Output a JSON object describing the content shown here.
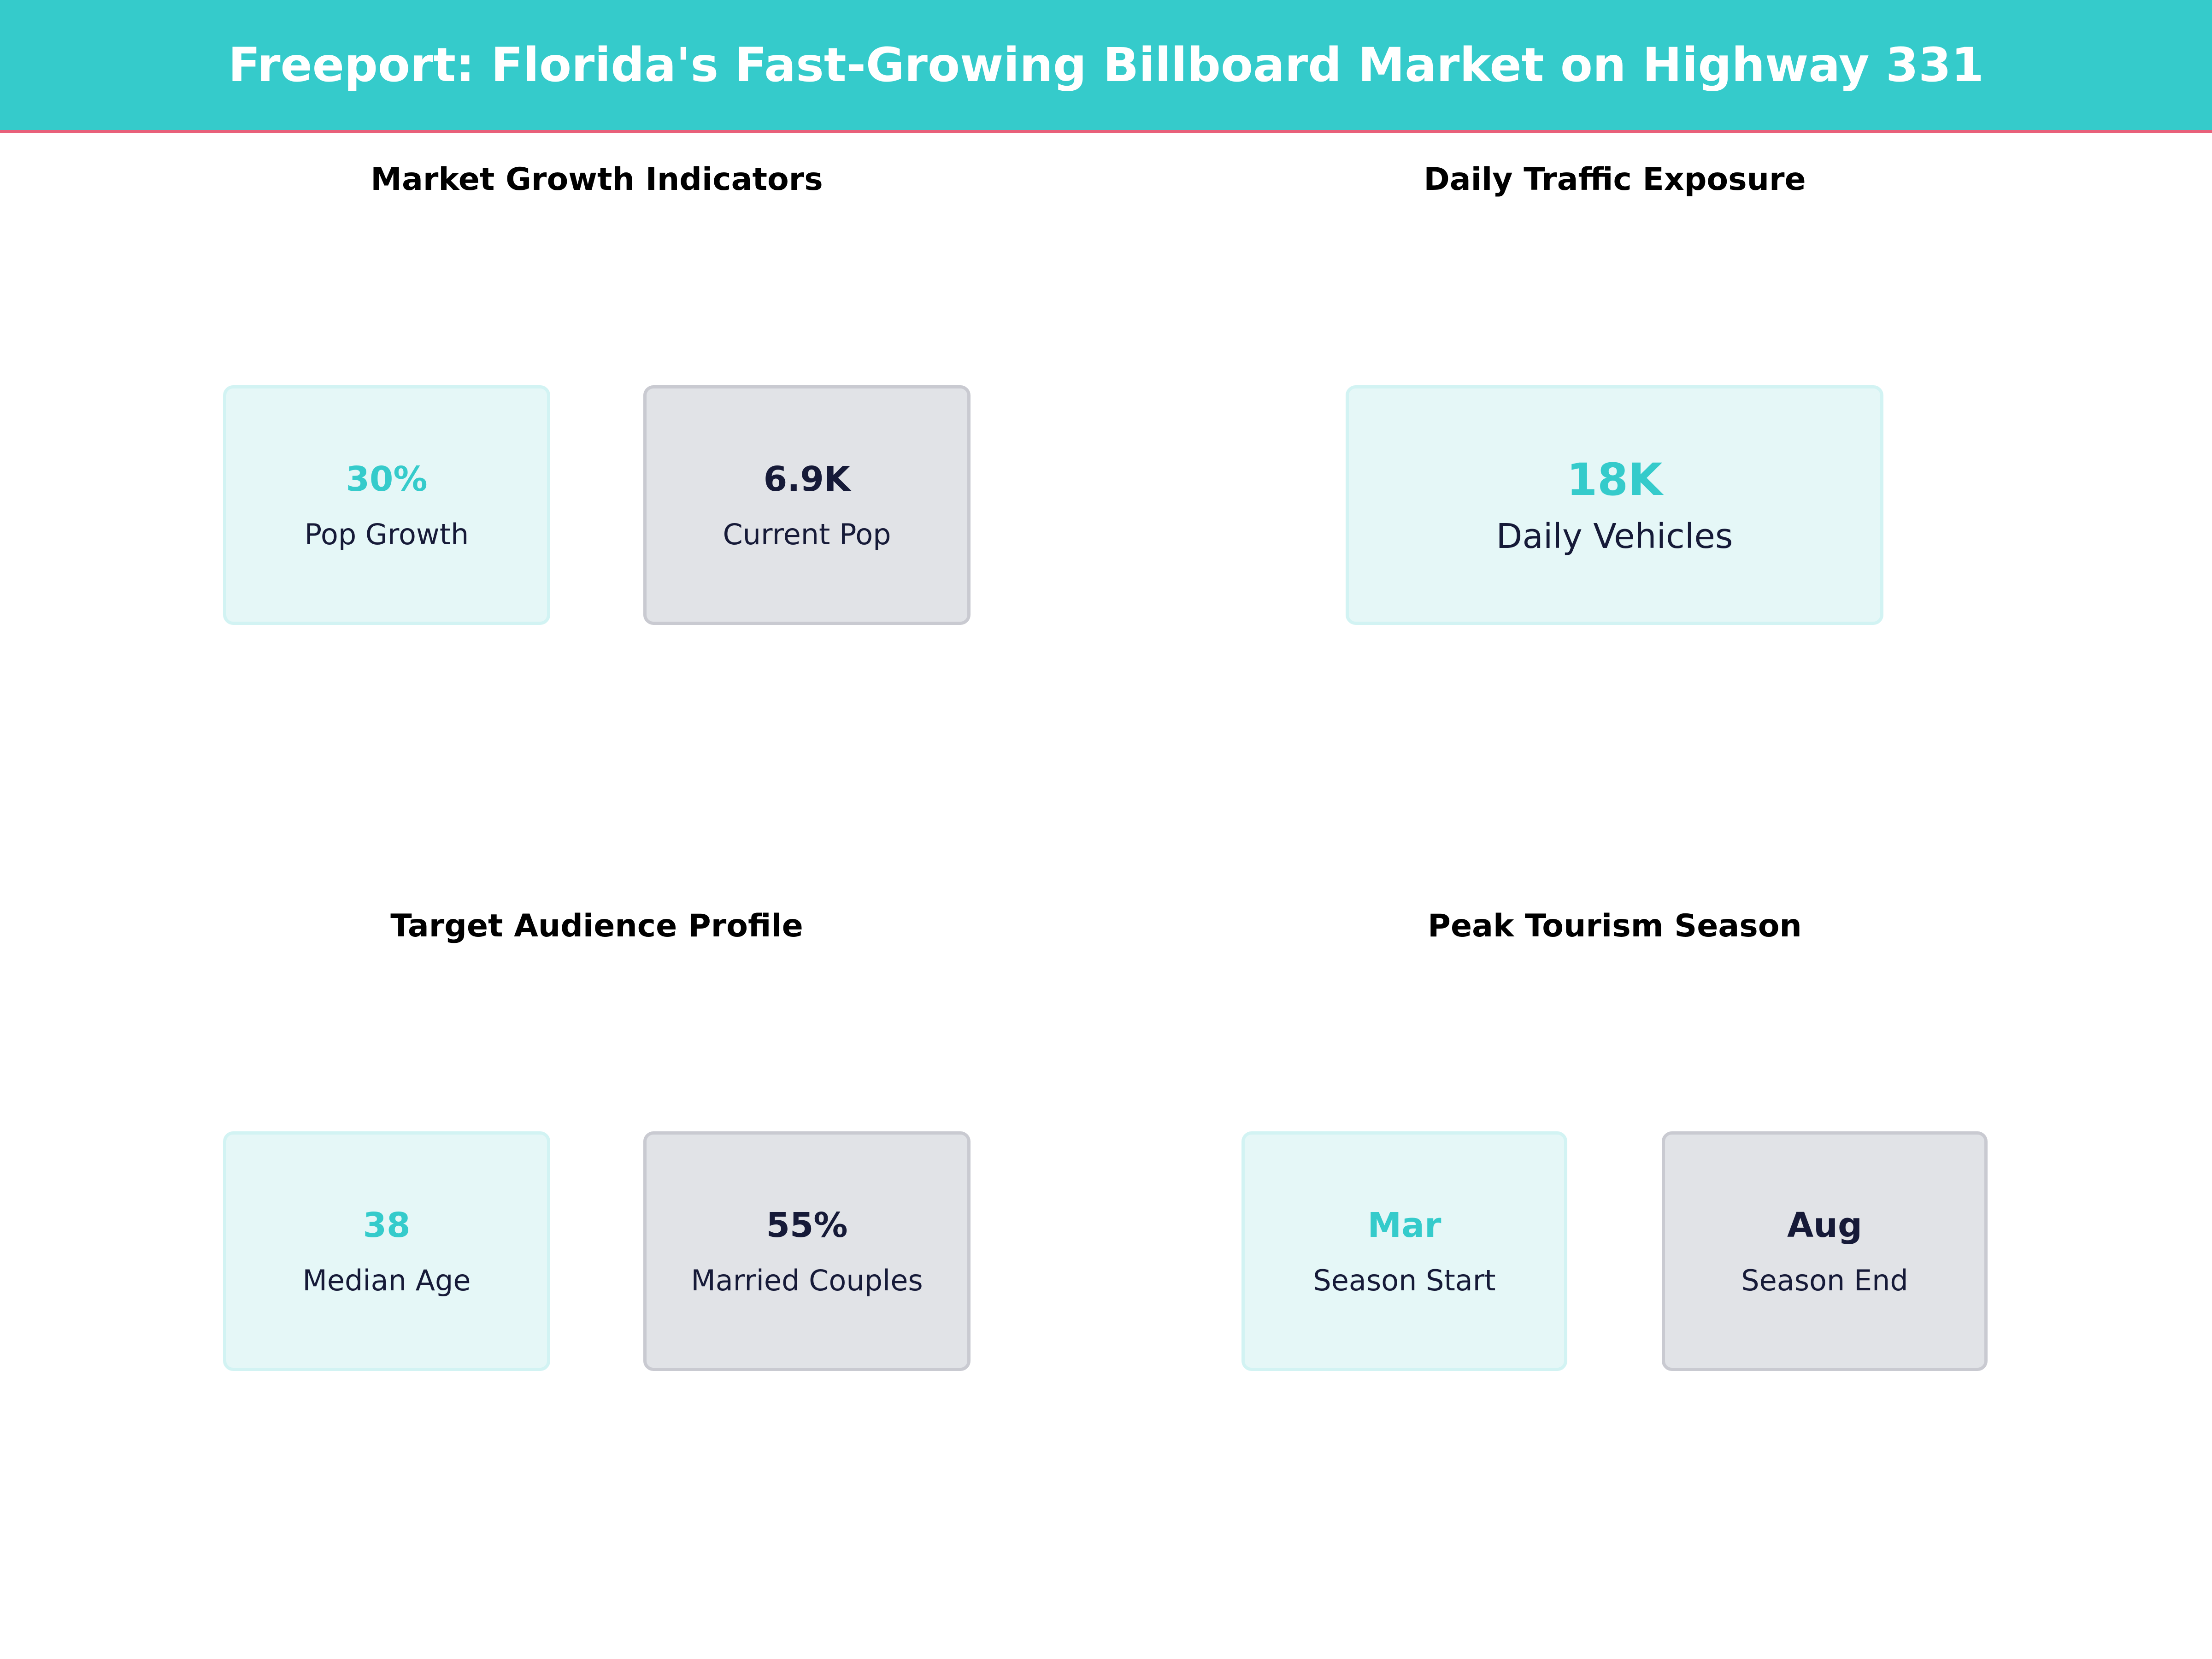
{
  "header": {
    "title": "Freeport: Florida's Fast-Growing Billboard Market on Highway 331"
  },
  "colors": {
    "accent": "#35cbcb",
    "header_rule": "#e8607a",
    "dark_text": "#161a38",
    "teal_card": "#e5f7f7",
    "gray_card": "#e1e3e7"
  },
  "panels": [
    {
      "title": "Market Growth Indicators",
      "cards": [
        {
          "value": "30%",
          "label": "Pop Growth"
        },
        {
          "value": "6.9K",
          "label": "Current Pop"
        }
      ]
    },
    {
      "title": "Daily Traffic Exposure",
      "cards": [
        {
          "value": "18K",
          "label": "Daily Vehicles"
        }
      ]
    },
    {
      "title": "Target Audience Profile",
      "cards": [
        {
          "value": "38",
          "label": "Median Age"
        },
        {
          "value": "55%",
          "label": "Married Couples"
        }
      ]
    },
    {
      "title": "Peak Tourism Season",
      "cards": [
        {
          "value": "Mar",
          "label": "Season Start"
        },
        {
          "value": "Aug",
          "label": "Season End"
        }
      ]
    }
  ]
}
